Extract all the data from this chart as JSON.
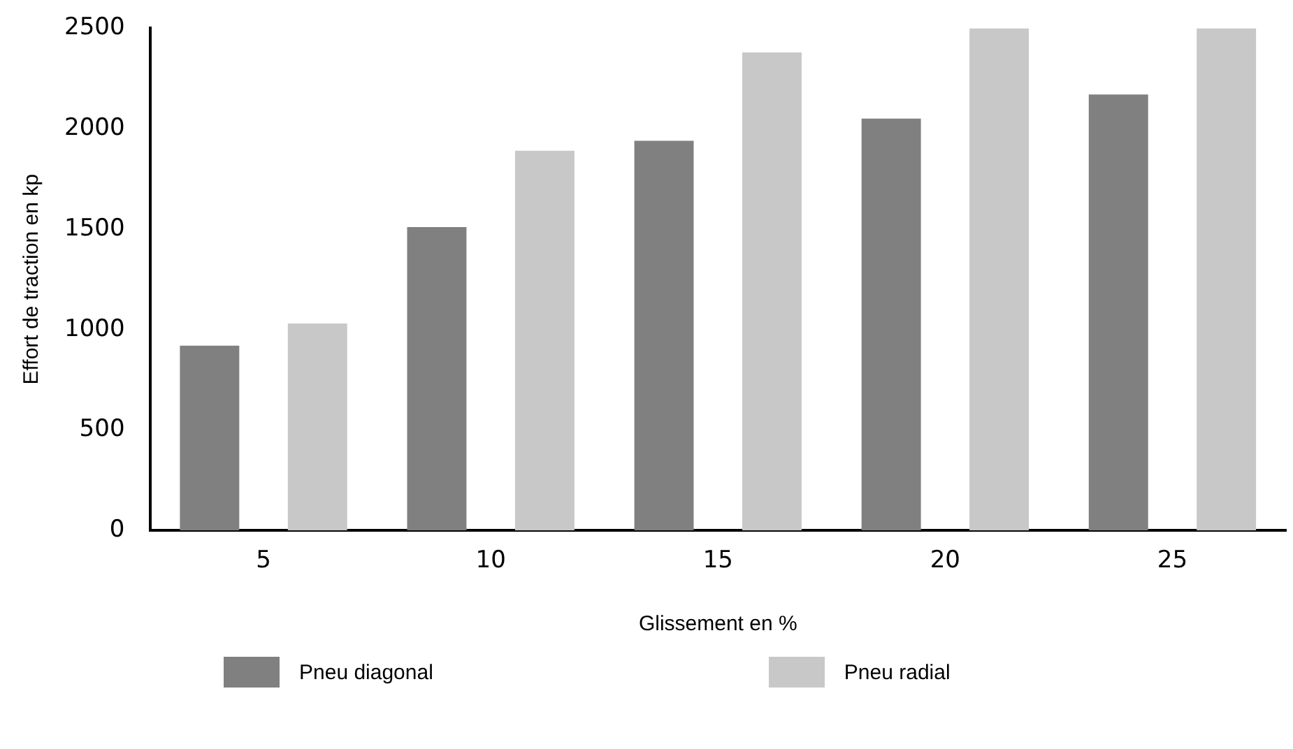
{
  "chart_data": {
    "type": "bar",
    "xlabel": "Glissement en %",
    "ylabel": "Effort de traction en kp",
    "categories": [
      "5",
      "10",
      "15",
      "20",
      "25"
    ],
    "series": [
      {
        "name": "Pneu diagonal",
        "color": "#808080",
        "values": [
          920,
          1510,
          1940,
          2050,
          2170
        ]
      },
      {
        "name": "Pneu radial",
        "color": "#c8c8c8",
        "values": [
          1030,
          1890,
          2380,
          2500,
          2500
        ]
      }
    ],
    "ylim": [
      0,
      2500
    ],
    "yticks": [
      0,
      500,
      1000,
      1500,
      2000,
      2500
    ],
    "grid": false,
    "legend": "bottom"
  }
}
